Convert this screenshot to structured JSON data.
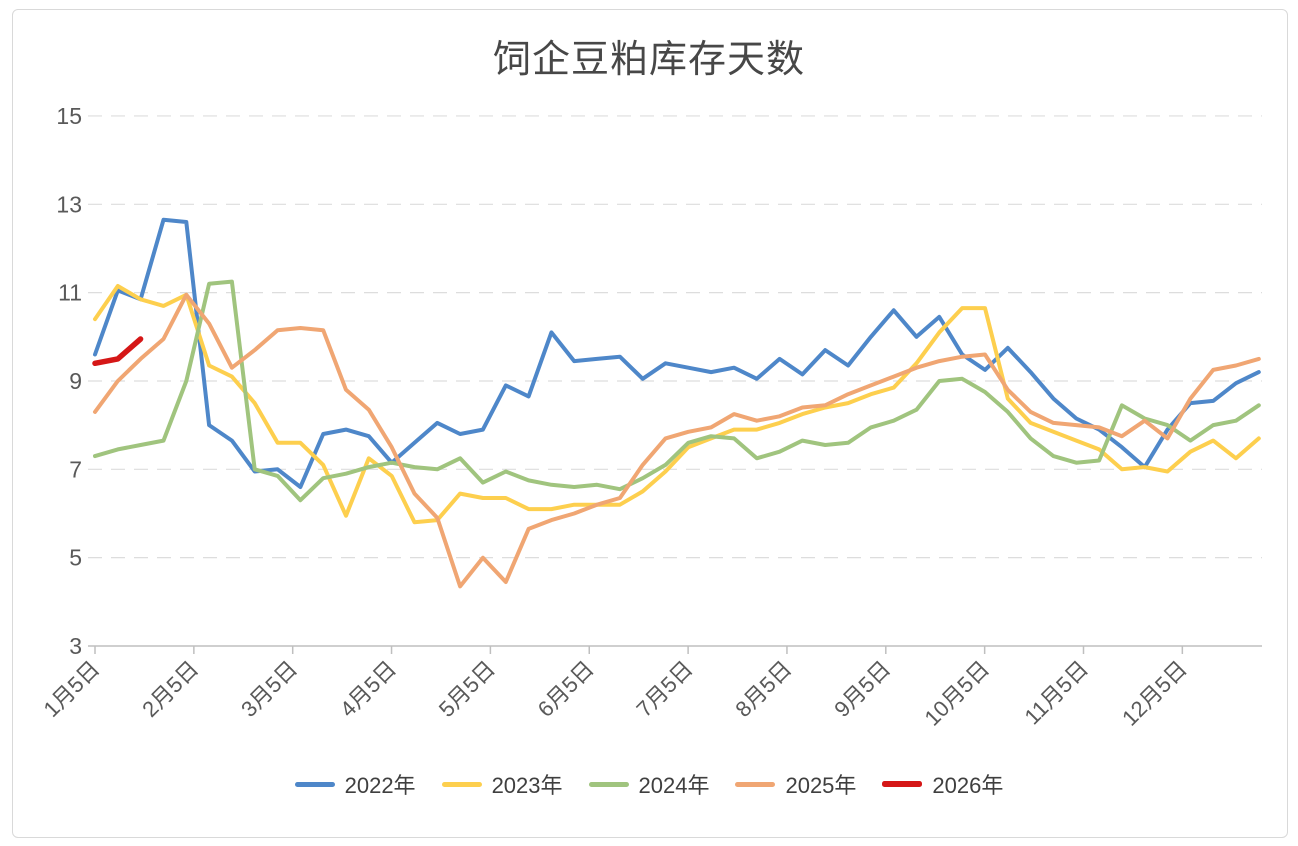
{
  "window": {
    "background_color": "#ffffff",
    "frame_border_color": "#d9d9d9"
  },
  "chart_data": {
    "type": "line",
    "title": "饲企豆粕库存天数",
    "xlabel": "",
    "ylabel": "",
    "ylim": [
      3,
      15
    ],
    "y_ticks": [
      15,
      13,
      11,
      9,
      7,
      5,
      3
    ],
    "x_tick_labels": [
      "1月5日",
      "2月5日",
      "3月5日",
      "4月5日",
      "5月5日",
      "6月5日",
      "7月5日",
      "8月5日",
      "9月5日",
      "10月5日",
      "11月5日",
      "12月5日"
    ],
    "x_unit": "weekly points, 52 weeks starting 1月5日",
    "grid": "horizontal dashed gridlines",
    "legend_position": "bottom",
    "axis_color": "#bfbfbf",
    "gridline_color": "#dddddd",
    "tick_label_color": "#595959",
    "series": [
      {
        "name": "2022年",
        "color": "#4e87c9",
        "line_width": 4,
        "values": [
          9.6,
          11.05,
          10.85,
          12.65,
          12.6,
          8.0,
          7.65,
          6.95,
          7.0,
          6.6,
          7.8,
          7.9,
          7.75,
          7.15,
          7.6,
          8.05,
          7.8,
          7.9,
          8.9,
          8.65,
          10.1,
          9.45,
          9.5,
          9.55,
          9.05,
          9.4,
          9.3,
          9.2,
          9.3,
          9.05,
          9.5,
          9.15,
          9.7,
          9.35,
          10.0,
          10.6,
          10.0,
          10.45,
          9.6,
          9.25,
          9.75,
          9.2,
          8.6,
          8.15,
          7.9,
          7.5,
          7.05,
          7.9,
          8.5,
          8.55,
          8.95,
          9.2
        ]
      },
      {
        "name": "2023年",
        "color": "#fdcf4e",
        "line_width": 4,
        "values": [
          10.4,
          11.15,
          10.85,
          10.7,
          10.95,
          9.35,
          9.1,
          8.5,
          7.6,
          7.6,
          7.1,
          5.95,
          7.25,
          6.85,
          5.8,
          5.85,
          6.45,
          6.35,
          6.35,
          6.1,
          6.1,
          6.2,
          6.2,
          6.2,
          6.5,
          6.95,
          7.5,
          7.7,
          7.9,
          7.9,
          8.05,
          8.25,
          8.4,
          8.5,
          8.7,
          8.85,
          9.4,
          10.1,
          10.65,
          10.65,
          8.6,
          8.05,
          7.85,
          7.65,
          7.45,
          7.0,
          7.05,
          6.95,
          7.4,
          7.65,
          7.25,
          7.7
        ]
      },
      {
        "name": "2024年",
        "color": "#a0c47e",
        "line_width": 4,
        "values": [
          7.3,
          7.45,
          7.55,
          7.65,
          9.0,
          11.2,
          11.25,
          7.0,
          6.85,
          6.3,
          6.8,
          6.9,
          7.05,
          7.15,
          7.05,
          7.0,
          7.25,
          6.7,
          6.95,
          6.75,
          6.65,
          6.6,
          6.65,
          6.55,
          6.8,
          7.1,
          7.6,
          7.75,
          7.7,
          7.25,
          7.4,
          7.65,
          7.55,
          7.6,
          7.95,
          8.1,
          8.35,
          9.0,
          9.05,
          8.75,
          8.3,
          7.7,
          7.3,
          7.15,
          7.2,
          8.45,
          8.15,
          8.0,
          7.65,
          8.0,
          8.1,
          8.45
        ]
      },
      {
        "name": "2025年",
        "color": "#f0a673",
        "line_width": 4,
        "values": [
          8.3,
          9.0,
          9.5,
          9.95,
          10.95,
          10.3,
          9.3,
          9.7,
          10.15,
          10.2,
          10.15,
          8.8,
          8.35,
          7.5,
          6.45,
          5.9,
          4.35,
          5.0,
          4.45,
          5.65,
          5.85,
          6.0,
          6.2,
          6.35,
          7.1,
          7.7,
          7.85,
          7.95,
          8.25,
          8.1,
          8.2,
          8.4,
          8.45,
          8.7,
          8.9,
          9.1,
          9.3,
          9.45,
          9.55,
          9.6,
          8.8,
          8.3,
          8.05,
          8.0,
          7.95,
          7.75,
          8.1,
          7.7,
          8.6,
          9.25,
          9.35,
          9.5
        ]
      },
      {
        "name": "2026年",
        "color": "#d51717",
        "line_width": 5.5,
        "values": [
          9.4,
          9.5,
          9.95
        ]
      }
    ]
  }
}
